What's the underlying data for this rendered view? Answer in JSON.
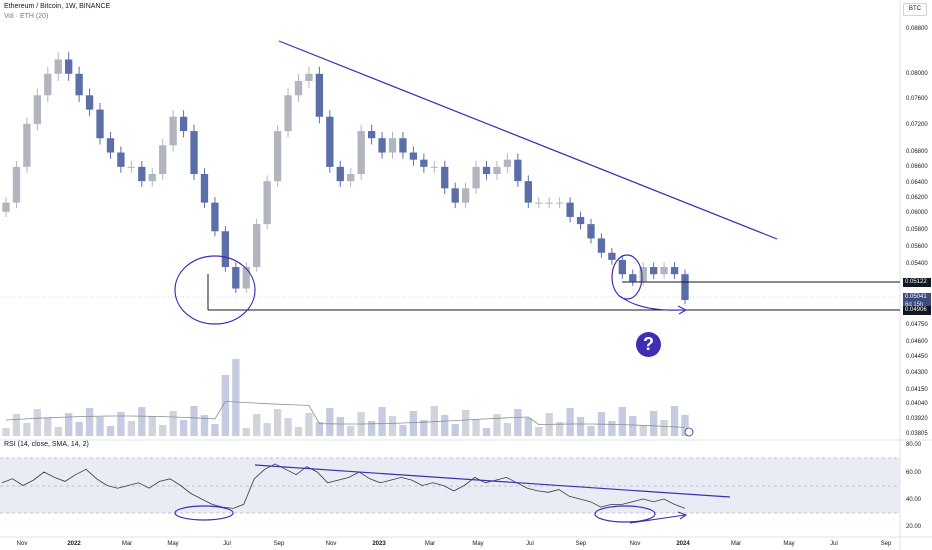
{
  "header": {
    "title": "Ethereum / Bitcoin, 1W, BINANCE",
    "volume_label": "Vol · ETH (20)",
    "currency_button": "BTC"
  },
  "rsi_header": "RSI (14, close, SMA, 14, 2)",
  "question_mark": "?",
  "price_labels": {
    "upper_line": "0.05122",
    "last_price": "0.05041",
    "countdown": "6d 15h",
    "lower_line": "0.04906"
  },
  "colors": {
    "up": "#b2b5be",
    "down": "#5b6ea8",
    "drawing": "#3d2fb4",
    "rsi_line": "#3a3a3a",
    "rsi_band": "#e9ecf5"
  },
  "chart_data": [
    {
      "type": "candlestick",
      "title": "Ethereum / Bitcoin, 1W, BINANCE",
      "y_axis_labels": [
        "0.08800",
        "0.08000",
        "0.07600",
        "0.07200",
        "0.06800",
        "0.06600",
        "0.06400",
        "0.06200",
        "0.06000",
        "0.05800",
        "0.05600",
        "0.05400",
        "0.05200",
        "0.05041",
        "0.04906",
        "0.04750",
        "0.04600",
        "0.04450",
        "0.04300",
        "0.04150",
        "0.04040",
        "0.03920",
        "0.03805"
      ],
      "x_axis_labels": [
        "Nov",
        "2022",
        "Mar",
        "May",
        "Jul",
        "Sep",
        "Nov",
        "2023",
        "Mar",
        "May",
        "Jul",
        "Sep",
        "Nov",
        "2024",
        "Mar",
        "May",
        "Jul",
        "Sep"
      ],
      "close_path_approx": [
        0.064,
        0.069,
        0.075,
        0.079,
        0.082,
        0.084,
        0.082,
        0.079,
        0.077,
        0.073,
        0.071,
        0.069,
        0.069,
        0.067,
        0.068,
        0.072,
        0.076,
        0.074,
        0.068,
        0.064,
        0.06,
        0.055,
        0.052,
        0.055,
        0.061,
        0.067,
        0.074,
        0.079,
        0.081,
        0.082,
        0.076,
        0.069,
        0.067,
        0.068,
        0.074,
        0.073,
        0.071,
        0.073,
        0.071,
        0.07,
        0.069,
        0.069,
        0.066,
        0.064,
        0.066,
        0.069,
        0.068,
        0.069,
        0.07,
        0.067,
        0.064,
        0.064,
        0.064,
        0.064,
        0.062,
        0.061,
        0.059,
        0.057,
        0.056,
        0.054,
        0.053,
        0.055,
        0.054,
        0.055,
        0.054,
        0.0504
      ],
      "last_price": 0.05041,
      "horizontal_levels": [
        0.05122,
        0.04906
      ],
      "volume_series": "Vol · ETH (20)"
    },
    {
      "type": "line",
      "title": "RSI (14, close, SMA, 14, 2)",
      "y_axis_labels": [
        "80.00",
        "60.00",
        "40.00",
        "20.00"
      ],
      "ylim": [
        20,
        80
      ],
      "band": [
        30,
        70
      ],
      "values_approx": [
        52,
        55,
        50,
        54,
        60,
        56,
        53,
        58,
        62,
        55,
        50,
        48,
        50,
        52,
        48,
        53,
        55,
        50,
        44,
        40,
        36,
        34,
        33,
        36,
        55,
        62,
        66,
        62,
        58,
        64,
        60,
        52,
        54,
        56,
        60,
        55,
        52,
        54,
        56,
        54,
        50,
        52,
        50,
        46,
        50,
        56,
        52,
        54,
        56,
        52,
        48,
        46,
        45,
        47,
        42,
        40,
        38,
        34,
        36,
        36,
        38,
        40,
        38,
        40,
        36,
        33
      ]
    }
  ]
}
